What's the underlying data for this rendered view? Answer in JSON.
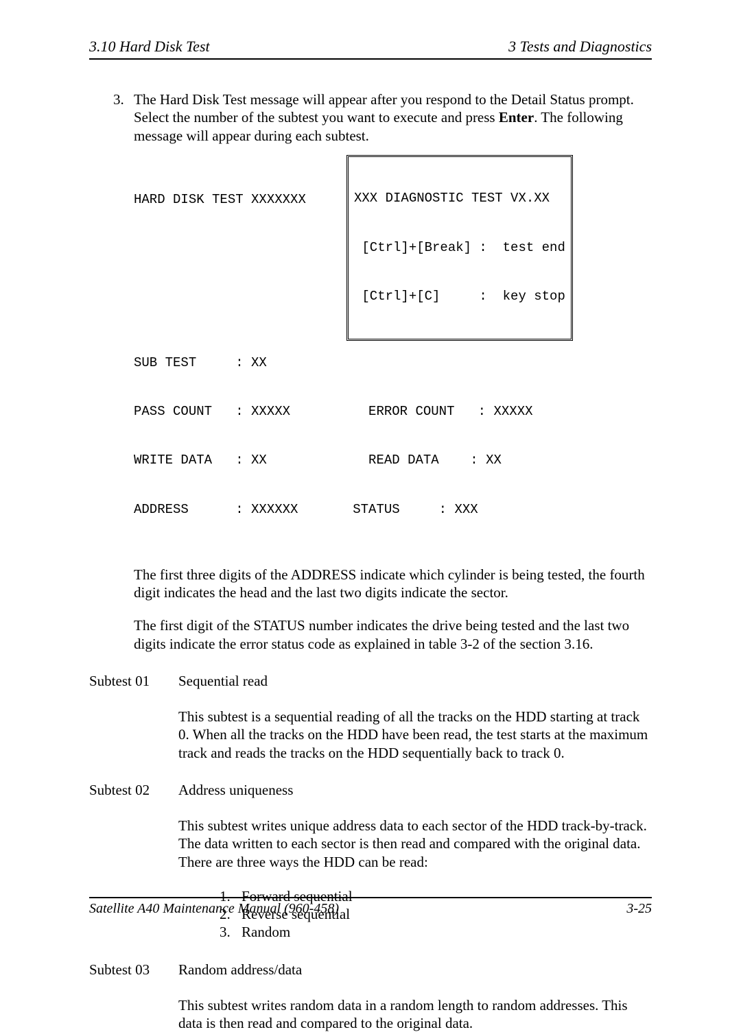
{
  "header": {
    "left": "3.10  Hard Disk Test",
    "right": "3  Tests and Diagnostics"
  },
  "footer": {
    "left": "Satellite A40 Maintenance Manual (960-458)",
    "right": "3-25"
  },
  "intro": {
    "num": "3.",
    "text_before": "The Hard Disk Test message will appear after you respond to the Detail Status prompt. Select the number of the subtest you want to execute and press ",
    "enter_word": "Enter",
    "text_after": ". The following message will appear during each subtest."
  },
  "test_display": {
    "title_line": "HARD DISK TEST XXXXXXX",
    "blank": "",
    "sub_test": "SUB TEST     : XX",
    "pass_error": "PASS COUNT   : XXXXX          ERROR COUNT   : XXXXX",
    "write_read": "WRITE DATA   : XX             READ DATA    : XX",
    "addr_status": "ADDRESS      : XXXXXX       STATUS     : XXX",
    "diag_box": {
      "line1": "XXX DIAGNOSTIC TEST VX.XX",
      "line2": " [Ctrl]+[Break] :  test end",
      "line3": " [Ctrl]+[C]     :  key stop"
    }
  },
  "para_address": "The first three digits of the ADDRESS indicate which cylinder is being tested, the fourth digit indicates the head and the last two digits indicate the sector.",
  "para_status": "The first digit of the STATUS number indicates the drive being tested and the last two digits indicate the error status code as explained in table 3-2 of the section 3.16.",
  "subtests": {
    "s01": {
      "label": "Subtest 01",
      "title": "Sequential read",
      "desc": "This subtest is a sequential reading of all the tracks on the HDD starting at track 0. When all the tracks on the HDD have been read, the test starts at the maximum track and reads the tracks on the HDD sequentially back to track 0."
    },
    "s02": {
      "label": "Subtest 02",
      "title": "Address uniqueness",
      "desc": "This subtest writes unique address data to each sector of the HDD track-by-track. The data written to each sector is then read and compared with the original data. There are three ways the HDD can be read:",
      "items": {
        "n1": "1.",
        "t1": "Forward sequential",
        "n2": "2.",
        "t2": "Reverse sequential",
        "n3": "3.",
        "t3": "Random"
      }
    },
    "s03": {
      "label": "Subtest 03",
      "title": "Random address/data",
      "desc": "This subtest writes random data in a random length to random addresses. This data is then read and compared to the original data."
    }
  }
}
